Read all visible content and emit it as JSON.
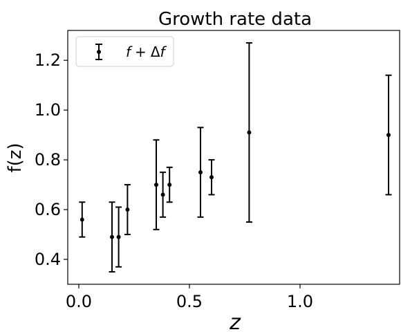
{
  "chart_data": {
    "type": "scatter",
    "title": "Growth rate data",
    "xlabel": "z",
    "ylabel": "f(z)",
    "xlim": [
      -0.05,
      1.45
    ],
    "ylim": [
      0.3,
      1.32
    ],
    "xticks": [
      0.0,
      0.5,
      1.0
    ],
    "xtick_labels": [
      "0.0",
      "0.5",
      "1.0"
    ],
    "yticks": [
      0.4,
      0.6,
      0.8,
      1.0,
      1.2
    ],
    "ytick_labels": [
      "0.4",
      "0.6",
      "0.8",
      "1.0",
      "1.2"
    ],
    "grid": false,
    "legend": {
      "location": "top-left",
      "entry": {
        "func": "f",
        "plus": "+",
        "delta": "Δ",
        "func2": "f"
      }
    },
    "series": [
      {
        "color": "#000000",
        "marker": "point-with-errorbar",
        "points": [
          {
            "x": 0.015,
            "y": 0.56,
            "err": 0.07
          },
          {
            "x": 0.15,
            "y": 0.49,
            "err": 0.14
          },
          {
            "x": 0.18,
            "y": 0.49,
            "err": 0.12
          },
          {
            "x": 0.22,
            "y": 0.6,
            "err": 0.1
          },
          {
            "x": 0.35,
            "y": 0.7,
            "err": 0.18
          },
          {
            "x": 0.38,
            "y": 0.66,
            "err": 0.09
          },
          {
            "x": 0.41,
            "y": 0.7,
            "err": 0.07
          },
          {
            "x": 0.55,
            "y": 0.75,
            "err": 0.18
          },
          {
            "x": 0.6,
            "y": 0.73,
            "err": 0.07
          },
          {
            "x": 0.77,
            "y": 0.91,
            "err": 0.36
          },
          {
            "x": 1.4,
            "y": 0.9,
            "err": 0.24
          }
        ]
      }
    ]
  }
}
